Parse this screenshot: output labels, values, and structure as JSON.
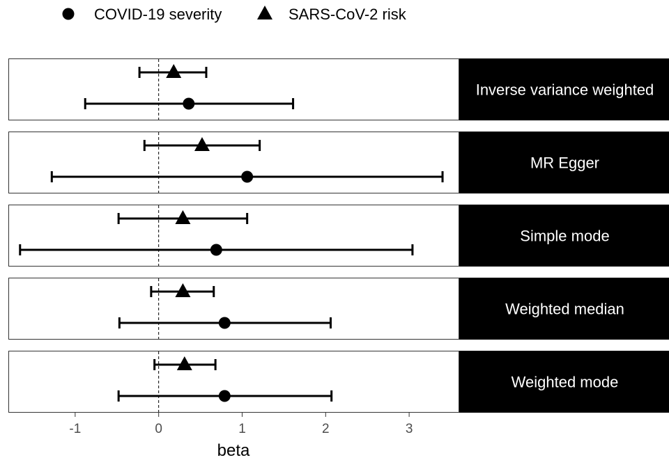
{
  "chart_data": {
    "type": "forest",
    "xlabel": "beta",
    "xlim": [
      -1.8,
      3.6
    ],
    "x_ticks": [
      -1,
      0,
      1,
      2,
      3
    ],
    "reference_line": 0,
    "grid": false,
    "legend_position": "top",
    "legend": [
      {
        "name": "COVID-19 severity",
        "shape": "circle"
      },
      {
        "name": "SARS-CoV-2 risk",
        "shape": "triangle"
      }
    ],
    "panels": [
      {
        "label": "Inverse variance weighted",
        "points": [
          {
            "series": "SARS-CoV-2 risk",
            "estimate": 0.18,
            "lower": -0.23,
            "upper": 0.57
          },
          {
            "series": "COVID-19 severity",
            "estimate": 0.36,
            "lower": -0.88,
            "upper": 1.61
          }
        ]
      },
      {
        "label": "MR Egger",
        "points": [
          {
            "series": "SARS-CoV-2 risk",
            "estimate": 0.52,
            "lower": -0.17,
            "upper": 1.21
          },
          {
            "series": "COVID-19 severity",
            "estimate": 1.06,
            "lower": -1.28,
            "upper": 3.4
          }
        ]
      },
      {
        "label": "Simple mode",
        "points": [
          {
            "series": "SARS-CoV-2 risk",
            "estimate": 0.29,
            "lower": -0.48,
            "upper": 1.06
          },
          {
            "series": "COVID-19 severity",
            "estimate": 0.69,
            "lower": -1.66,
            "upper": 3.04
          }
        ]
      },
      {
        "label": "Weighted median",
        "points": [
          {
            "series": "SARS-CoV-2 risk",
            "estimate": 0.29,
            "lower": -0.09,
            "upper": 0.66
          },
          {
            "series": "COVID-19 severity",
            "estimate": 0.79,
            "lower": -0.47,
            "upper": 2.06
          }
        ]
      },
      {
        "label": "Weighted mode",
        "points": [
          {
            "series": "SARS-CoV-2 risk",
            "estimate": 0.31,
            "lower": -0.05,
            "upper": 0.68
          },
          {
            "series": "COVID-19 severity",
            "estimate": 0.79,
            "lower": -0.48,
            "upper": 2.07
          }
        ]
      }
    ]
  }
}
